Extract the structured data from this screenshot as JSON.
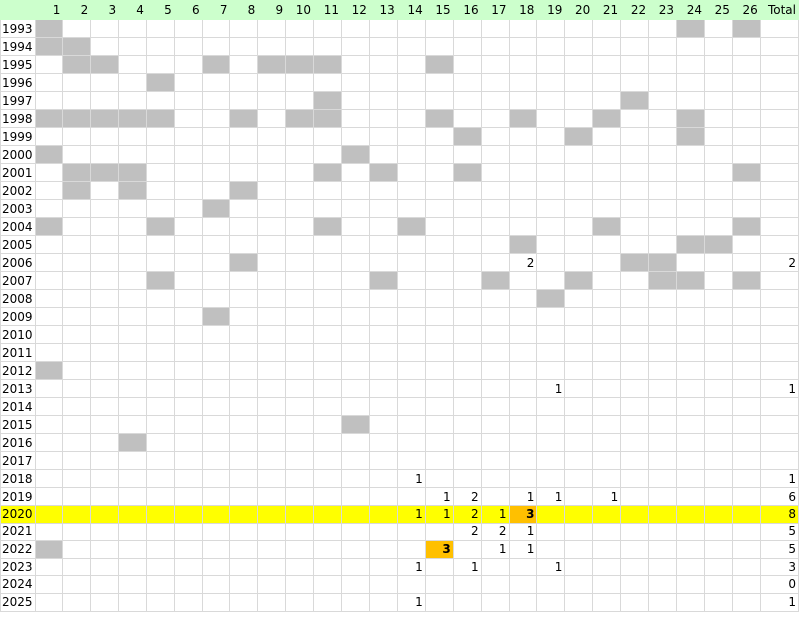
{
  "colors": {
    "header": "#ccffcc",
    "gray": "#c0c0c0",
    "highlight_row": "#ffff00",
    "highlight_cell": "#ffc000",
    "grid": "#d9d9d9"
  },
  "header": {
    "corner": "",
    "columns": [
      "1",
      "2",
      "3",
      "4",
      "5",
      "6",
      "7",
      "8",
      "9",
      "10",
      "11",
      "12",
      "13",
      "14",
      "15",
      "16",
      "17",
      "18",
      "19",
      "20",
      "21",
      "22",
      "23",
      "24",
      "25",
      "26"
    ],
    "total": "Total"
  },
  "rows": [
    {
      "year": "1993",
      "gray": [
        1,
        24,
        26
      ],
      "values": {},
      "total": ""
    },
    {
      "year": "1994",
      "gray": [
        1,
        2
      ],
      "values": {},
      "total": ""
    },
    {
      "year": "1995",
      "gray": [
        2,
        3,
        7,
        9,
        10,
        11,
        15
      ],
      "values": {},
      "total": ""
    },
    {
      "year": "1996",
      "gray": [
        5
      ],
      "values": {},
      "total": ""
    },
    {
      "year": "1997",
      "gray": [
        11,
        22
      ],
      "values": {},
      "total": ""
    },
    {
      "year": "1998",
      "gray": [
        1,
        2,
        3,
        4,
        5,
        8,
        10,
        11,
        15,
        18,
        21,
        24
      ],
      "values": {},
      "total": ""
    },
    {
      "year": "1999",
      "gray": [
        16,
        20,
        24
      ],
      "values": {},
      "total": ""
    },
    {
      "year": "2000",
      "gray": [
        1,
        12
      ],
      "values": {},
      "total": ""
    },
    {
      "year": "2001",
      "gray": [
        2,
        3,
        4,
        11,
        13,
        16,
        26
      ],
      "values": {},
      "total": ""
    },
    {
      "year": "2002",
      "gray": [
        2,
        4,
        8
      ],
      "values": {},
      "total": ""
    },
    {
      "year": "2003",
      "gray": [
        7
      ],
      "values": {},
      "total": ""
    },
    {
      "year": "2004",
      "gray": [
        1,
        5,
        11,
        14,
        21,
        26
      ],
      "values": {},
      "total": ""
    },
    {
      "year": "2005",
      "gray": [
        18,
        24,
        25
      ],
      "values": {},
      "total": ""
    },
    {
      "year": "2006",
      "gray": [
        8,
        22,
        23
      ],
      "values": {
        "18": "2"
      },
      "total": "2"
    },
    {
      "year": "2007",
      "gray": [
        5,
        13,
        17,
        20,
        23,
        24,
        26
      ],
      "values": {},
      "total": ""
    },
    {
      "year": "2008",
      "gray": [
        19
      ],
      "values": {},
      "total": ""
    },
    {
      "year": "2009",
      "gray": [
        7
      ],
      "values": {},
      "total": ""
    },
    {
      "year": "2010",
      "gray": [],
      "values": {},
      "total": ""
    },
    {
      "year": "2011",
      "gray": [],
      "values": {},
      "total": ""
    },
    {
      "year": "2012",
      "gray": [
        1
      ],
      "values": {},
      "total": ""
    },
    {
      "year": "2013",
      "gray": [],
      "values": {
        "19": "1"
      },
      "total": "1"
    },
    {
      "year": "2014",
      "gray": [],
      "values": {},
      "total": ""
    },
    {
      "year": "2015",
      "gray": [
        12
      ],
      "values": {},
      "total": ""
    },
    {
      "year": "2016",
      "gray": [
        4
      ],
      "values": {},
      "total": ""
    },
    {
      "year": "2017",
      "gray": [],
      "values": {},
      "total": ""
    },
    {
      "year": "2018",
      "gray": [],
      "values": {
        "14": "1"
      },
      "total": "1"
    },
    {
      "year": "2019",
      "gray": [],
      "values": {
        "15": "1",
        "16": "2",
        "18": "1",
        "19": "1",
        "21": "1"
      },
      "total": "6"
    },
    {
      "year": "2020",
      "gray": [],
      "highlight": true,
      "orange": [
        18
      ],
      "values": {
        "14": "1",
        "15": "1",
        "16": "2",
        "17": "1",
        "18": "3"
      },
      "total": "8"
    },
    {
      "year": "2021",
      "gray": [],
      "values": {
        "16": "2",
        "17": "2",
        "18": "1"
      },
      "total": "5"
    },
    {
      "year": "2022",
      "gray": [
        1
      ],
      "orange": [
        15
      ],
      "values": {
        "15": "3",
        "17": "1",
        "18": "1"
      },
      "total": "5"
    },
    {
      "year": "2023",
      "gray": [],
      "values": {
        "14": "1",
        "16": "1",
        "19": "1"
      },
      "total": "3"
    },
    {
      "year": "2024",
      "gray": [],
      "values": {},
      "total": "0"
    },
    {
      "year": "2025",
      "gray": [],
      "values": {
        "14": "1"
      },
      "total": "1"
    }
  ]
}
